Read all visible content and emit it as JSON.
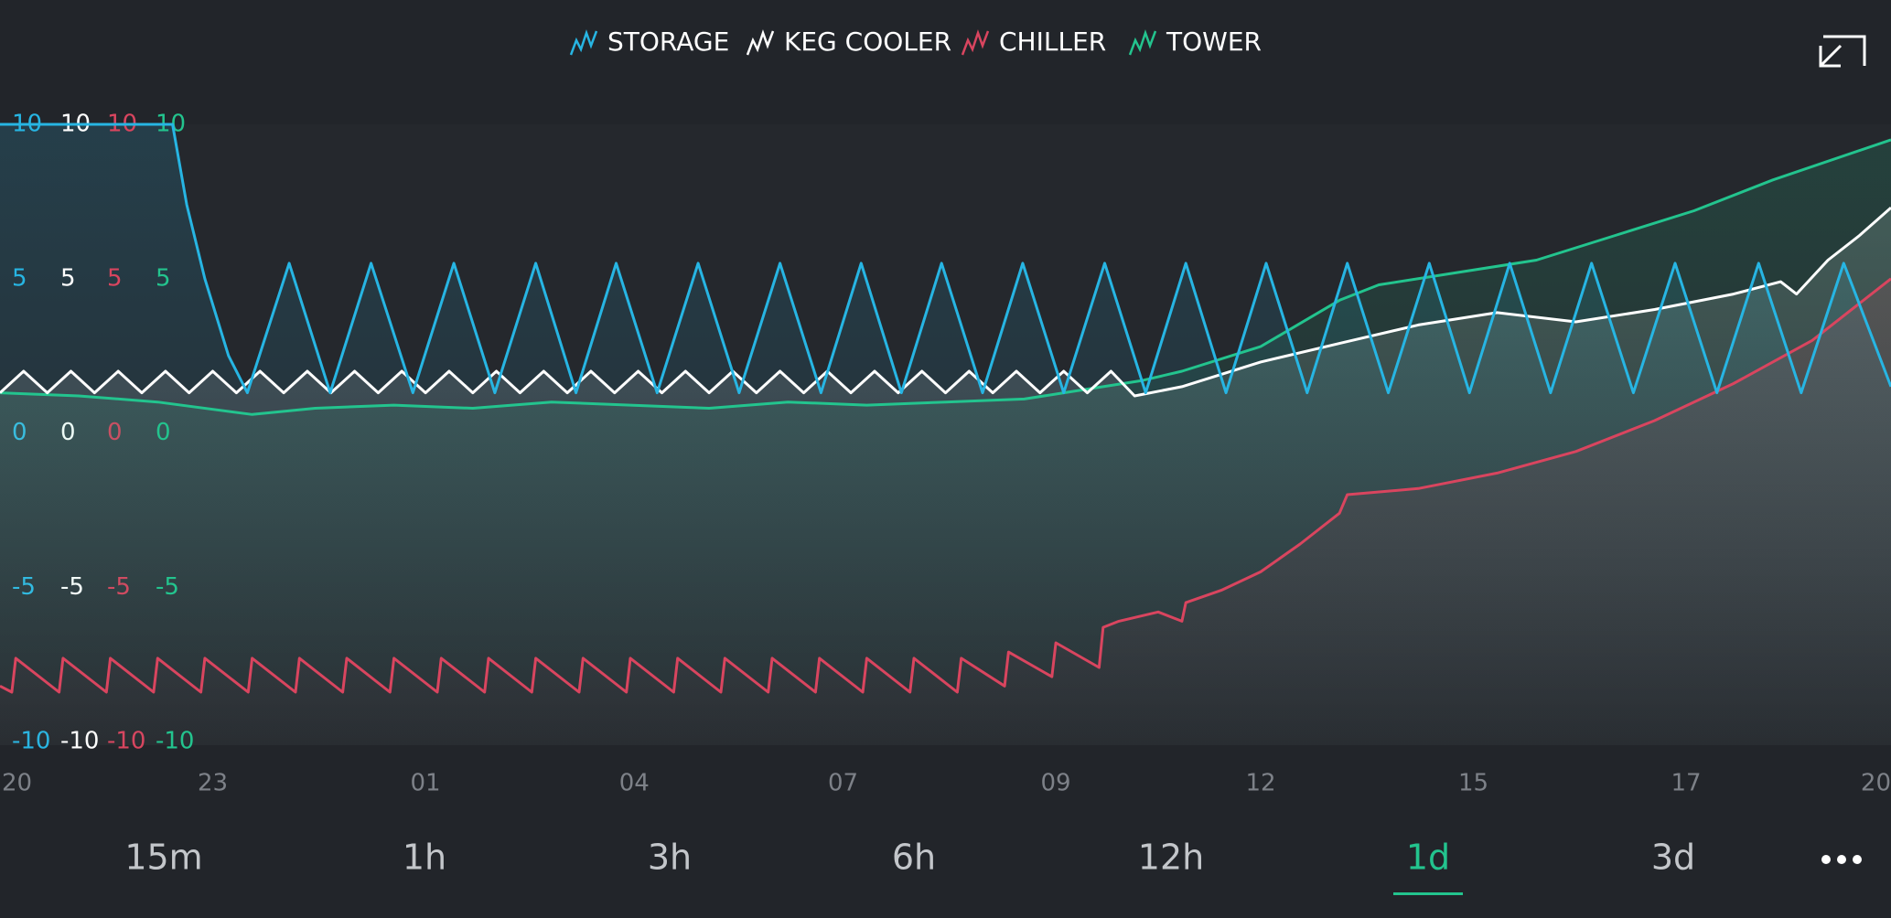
{
  "chart_data": {
    "type": "line",
    "xlim": [
      0,
      24
    ],
    "xticks": [
      {
        "value": 0,
        "label": "20"
      },
      {
        "value": 2.7,
        "label": "23"
      },
      {
        "value": 5.4,
        "label": "01"
      },
      {
        "value": 8.05,
        "label": "04"
      },
      {
        "value": 10.7,
        "label": "07"
      },
      {
        "value": 13.4,
        "label": "09"
      },
      {
        "value": 16.0,
        "label": "12"
      },
      {
        "value": 18.7,
        "label": "15"
      },
      {
        "value": 21.4,
        "label": "17"
      },
      {
        "value": 24,
        "label": "20"
      }
    ],
    "ylim": [
      -10,
      10
    ],
    "yticks": [
      10,
      5,
      0,
      -5,
      -10
    ],
    "series": [
      {
        "name": "STORAGE",
        "color": "#27b5e3",
        "x": [
          0,
          2.19,
          2.37,
          2.6,
          2.9,
          3.14,
          3.67,
          4.19,
          4.71,
          5.24,
          5.76,
          6.28,
          6.8,
          7.31,
          7.82,
          8.34,
          8.86,
          9.38,
          9.9,
          10.42,
          10.93,
          11.44,
          11.95,
          12.47,
          12.98,
          13.5,
          14.02,
          14.54,
          15.05,
          15.56,
          16.07,
          16.59,
          17.1,
          17.62,
          18.14,
          18.65,
          19.16,
          19.68,
          20.2,
          20.73,
          21.26,
          21.79,
          22.32,
          22.86,
          23.4,
          24
        ],
        "values": [
          10,
          10,
          7.4,
          5,
          2.5,
          1.3,
          5.5,
          1.3,
          5.5,
          1.3,
          5.5,
          1.3,
          5.5,
          1.3,
          5.5,
          1.3,
          5.5,
          1.3,
          5.5,
          1.3,
          5.5,
          1.3,
          5.5,
          1.3,
          5.5,
          1.3,
          5.5,
          1.3,
          5.5,
          1.3,
          5.5,
          1.3,
          5.5,
          1.3,
          5.5,
          1.3,
          5.5,
          1.3,
          5.5,
          1.3,
          5.5,
          1.3,
          5.5,
          1.3,
          5.5,
          1.5
        ]
      },
      {
        "name": "KEG COOLER",
        "color": "#ffffff",
        "x": [
          0,
          0.3,
          0.6,
          0.9,
          1.2,
          1.5,
          1.8,
          2.1,
          2.4,
          2.7,
          3,
          3.3,
          3.6,
          3.9,
          4.2,
          4.5,
          4.8,
          5.1,
          5.4,
          5.7,
          6,
          6.3,
          6.6,
          6.9,
          7.2,
          7.5,
          7.8,
          8.1,
          8.4,
          8.7,
          9,
          9.3,
          9.6,
          9.9,
          10.2,
          10.5,
          10.8,
          11.1,
          11.4,
          11.7,
          12,
          12.3,
          12.6,
          12.9,
          13.2,
          13.5,
          13.8,
          14.1,
          14.4,
          15,
          16,
          17,
          18,
          19,
          20,
          21,
          22,
          22.6,
          22.8,
          23.2,
          23.6,
          24
        ],
        "values": [
          1.3,
          2.0,
          1.3,
          2.0,
          1.3,
          2.0,
          1.3,
          2.0,
          1.3,
          2.0,
          1.3,
          2.0,
          1.3,
          2.0,
          1.3,
          2.0,
          1.3,
          2.0,
          1.3,
          2.0,
          1.3,
          2.0,
          1.3,
          2.0,
          1.3,
          2.0,
          1.3,
          2.0,
          1.3,
          2.0,
          1.3,
          2.0,
          1.3,
          2.0,
          1.3,
          2.0,
          1.3,
          2.0,
          1.3,
          2.0,
          1.3,
          2.0,
          1.3,
          2.0,
          1.3,
          2.0,
          1.3,
          2.0,
          1.2,
          1.5,
          2.3,
          2.9,
          3.5,
          3.9,
          3.6,
          4.0,
          4.5,
          4.9,
          4.5,
          5.6,
          6.4,
          7.3
        ]
      },
      {
        "name": "CHILLER",
        "color": "#d9455f",
        "x": [
          0,
          0.15,
          0.2,
          0.75,
          0.8,
          1.35,
          1.4,
          1.95,
          2,
          2.55,
          2.6,
          3.15,
          3.2,
          3.75,
          3.8,
          4.35,
          4.4,
          4.95,
          5,
          5.55,
          5.6,
          6.15,
          6.2,
          6.75,
          6.8,
          7.35,
          7.4,
          7.95,
          8,
          8.55,
          8.6,
          9.15,
          9.2,
          9.75,
          9.8,
          10.35,
          10.4,
          10.95,
          11,
          11.55,
          11.6,
          12.15,
          12.2,
          12.75,
          12.8,
          13.35,
          13.4,
          13.95,
          14.0,
          14.2,
          14.7,
          15.0,
          15.05,
          15.5,
          16,
          16.5,
          17,
          17.1,
          18,
          19,
          20,
          21,
          22,
          23,
          24
        ],
        "values": [
          -8.2,
          -8.4,
          -7.3,
          -8.4,
          -7.3,
          -8.4,
          -7.3,
          -8.4,
          -7.3,
          -8.4,
          -7.3,
          -8.4,
          -7.3,
          -8.4,
          -7.3,
          -8.4,
          -7.3,
          -8.4,
          -7.3,
          -8.4,
          -7.3,
          -8.4,
          -7.3,
          -8.4,
          -7.3,
          -8.4,
          -7.3,
          -8.4,
          -7.3,
          -8.4,
          -7.3,
          -8.4,
          -7.3,
          -8.4,
          -7.3,
          -8.4,
          -7.3,
          -8.4,
          -7.3,
          -8.4,
          -7.3,
          -8.4,
          -7.3,
          -8.2,
          -7.1,
          -7.9,
          -6.8,
          -7.6,
          -6.3,
          -6.1,
          -5.8,
          -6.1,
          -5.5,
          -5.1,
          -4.5,
          -3.6,
          -2.6,
          -2.0,
          -1.8,
          -1.3,
          -0.6,
          0.4,
          1.6,
          3.0,
          5.0
        ]
      },
      {
        "name": "TOWER",
        "color": "#23c48e",
        "x": [
          0,
          1,
          2,
          3.2,
          4,
          5,
          6,
          7,
          8,
          9,
          10,
          11,
          12,
          13,
          13.5,
          14.5,
          15,
          16,
          17,
          17.5,
          18.5,
          19.5,
          20.5,
          21.5,
          22.5,
          24
        ],
        "values": [
          1.3,
          1.2,
          1.0,
          0.6,
          0.8,
          0.9,
          0.8,
          1.0,
          0.9,
          0.8,
          1.0,
          0.9,
          1.0,
          1.1,
          1.3,
          1.7,
          2.0,
          2.8,
          4.3,
          4.8,
          5.2,
          5.6,
          6.4,
          7.2,
          8.2,
          9.5
        ]
      }
    ]
  },
  "time_ranges": [
    "15m",
    "1h",
    "3h",
    "6h",
    "12h",
    "1d",
    "3d"
  ],
  "selected_range": "1d"
}
